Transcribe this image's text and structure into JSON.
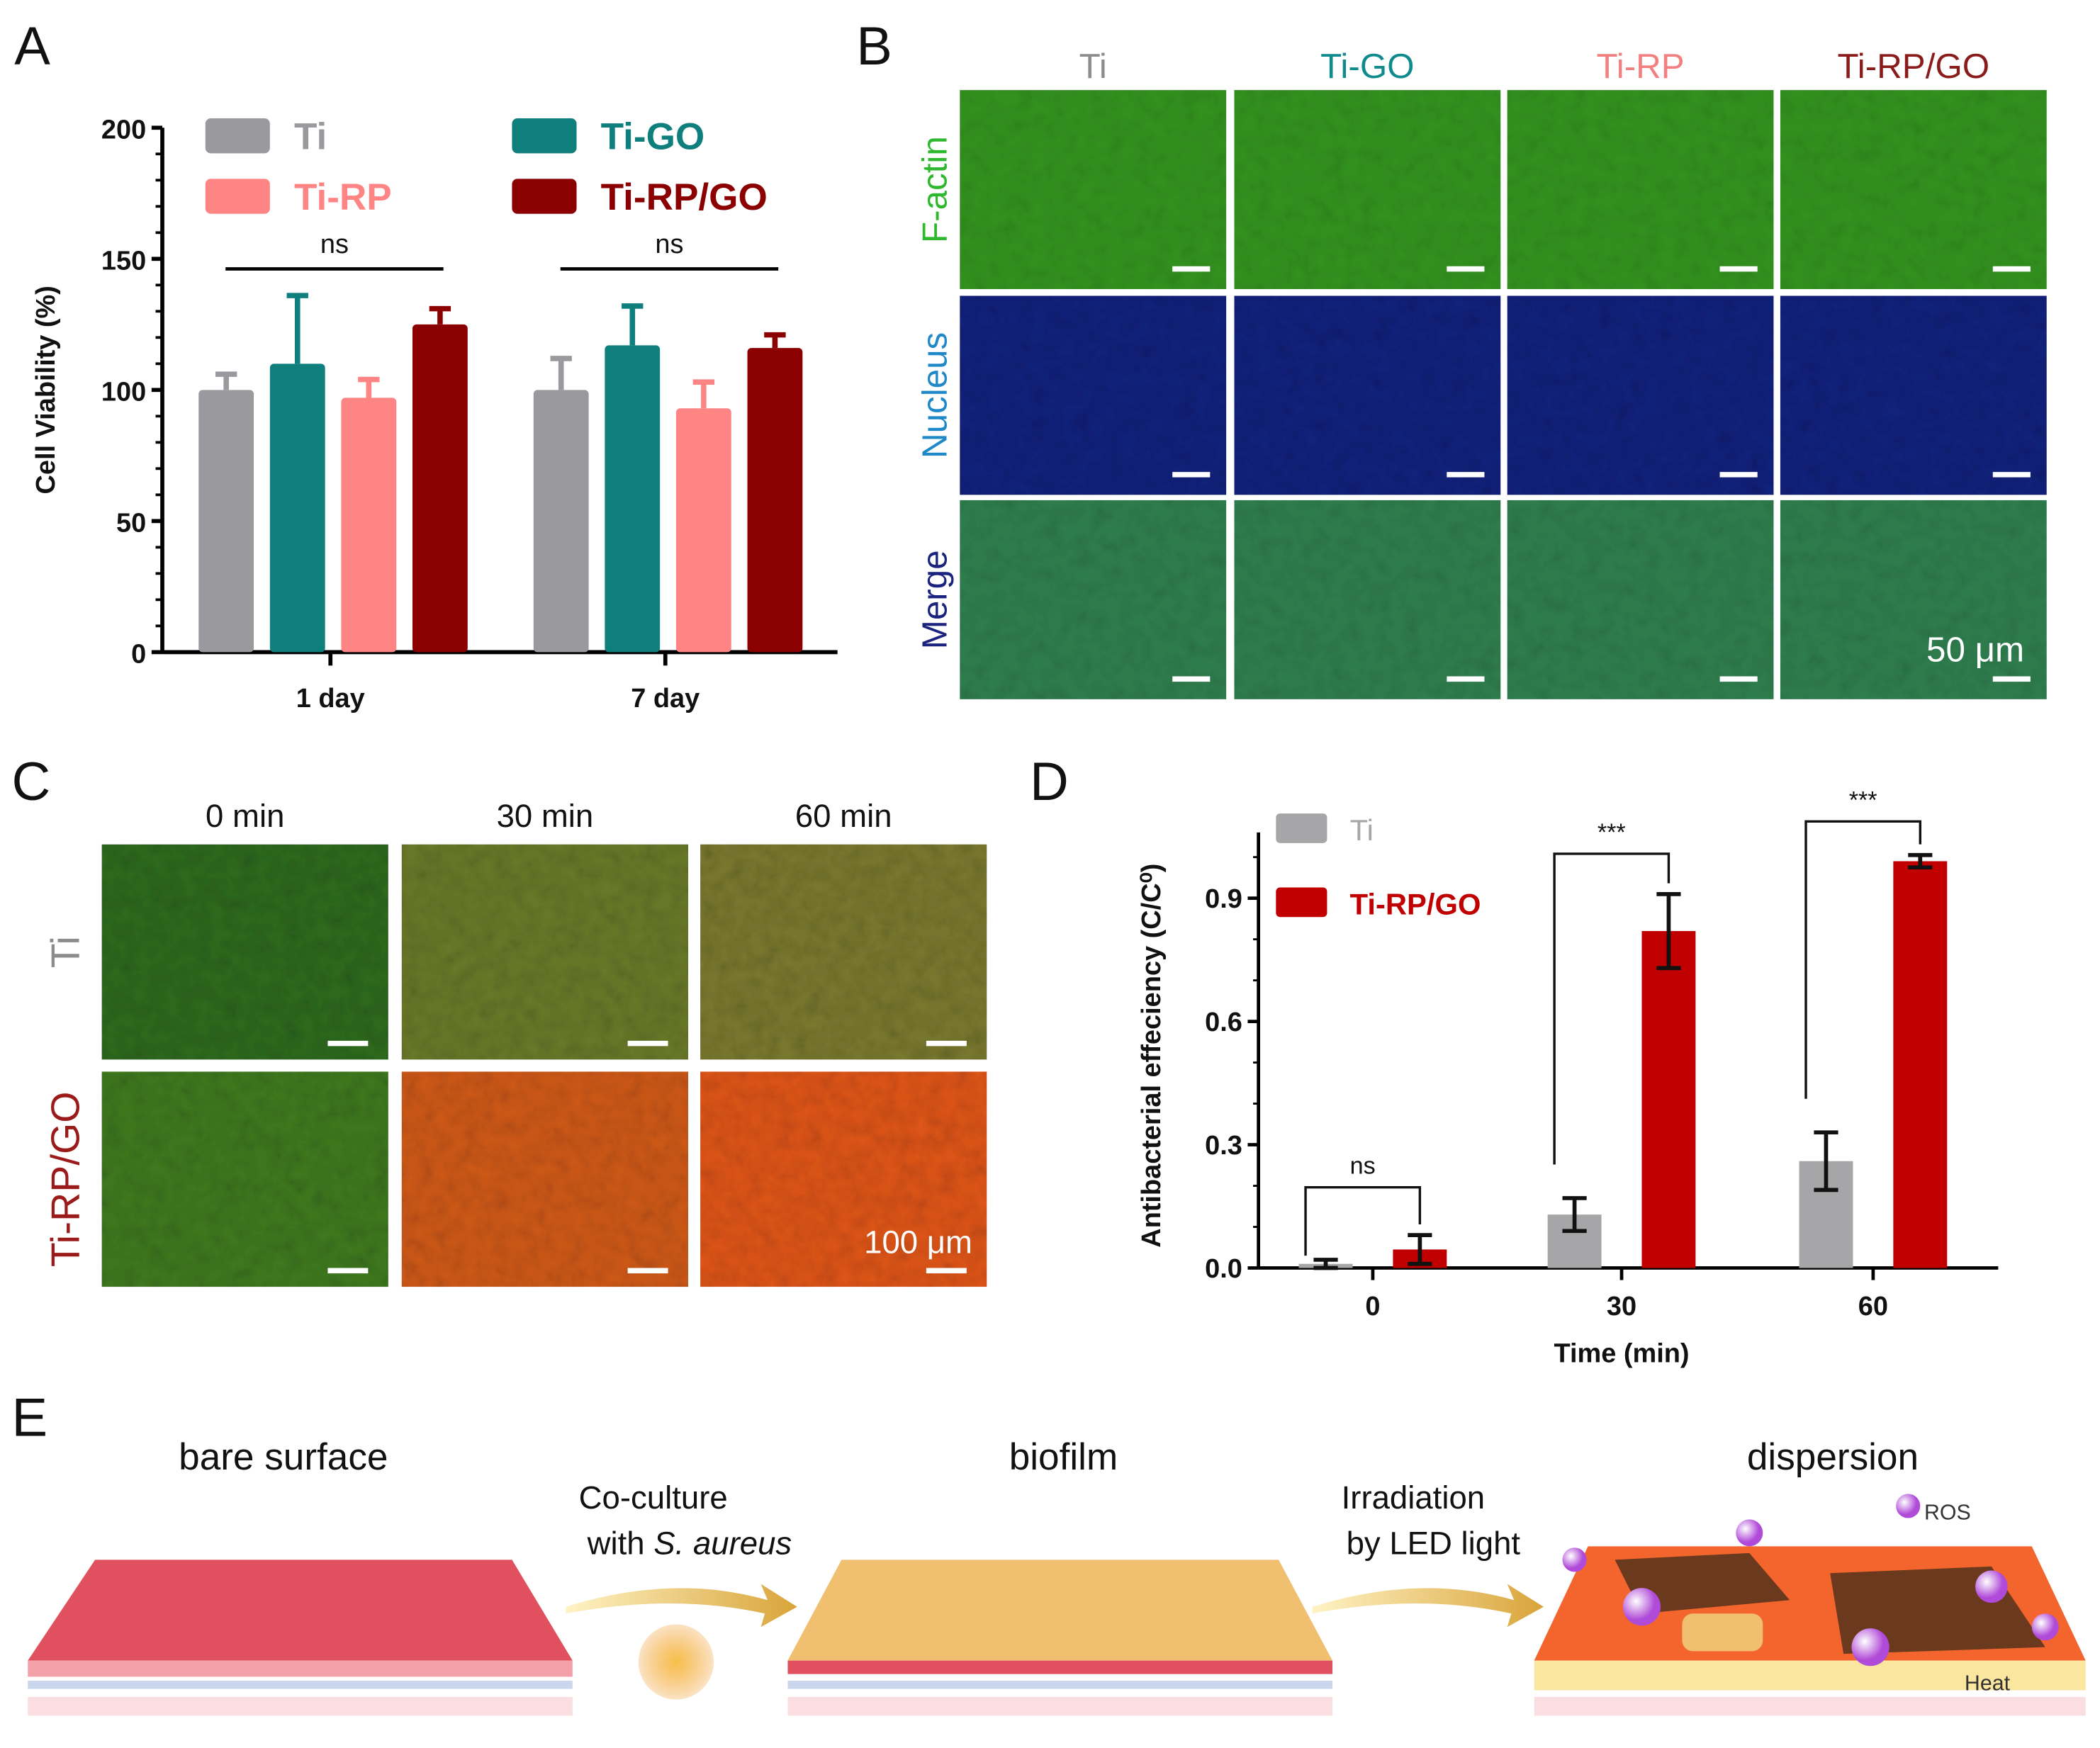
{
  "panel_labels": {
    "a": "A",
    "b": "B",
    "c": "C",
    "d": "D",
    "e": "E"
  },
  "panel_b": {
    "columns": [
      "Ti",
      "Ti-GO",
      "Ti-RP",
      "Ti-RP/GO"
    ],
    "column_colors": [
      "#8c8c8c",
      "#0f8b8d",
      "#f28080",
      "#8b1a1a"
    ],
    "rows": [
      "F-actin",
      "Nucleus",
      "Merge"
    ],
    "row_colors": [
      "#2eb82e",
      "#1e88c8",
      "#1a237e"
    ],
    "scale_bar": "50 μm"
  },
  "panel_c": {
    "columns": [
      "0 min",
      "30 min",
      "60 min"
    ],
    "rows": [
      "Ti",
      "Ti-RP/GO"
    ],
    "row_colors": [
      "#8c8c8c",
      "#9b1b1b"
    ],
    "scale_bar": "100 μm"
  },
  "panel_e": {
    "stage1": "bare surface",
    "step1_line1": "Co-culture",
    "step1_line2_prefix": "with ",
    "step1_line2_italic": "S. aureus",
    "stage2": "biofilm",
    "step2_line1": "Irradiation",
    "step2_line2": "by LED light",
    "stage3": "dispersion",
    "ros_label": "ROS",
    "heat_label": "Heat"
  },
  "chart_data": [
    {
      "type": "bar",
      "panel": "A",
      "categories": [
        "1 day",
        "7 day"
      ],
      "ylabel": "Cell Viability (%)",
      "xlabel": "",
      "ylim": [
        0,
        200
      ],
      "yticks": [
        "0",
        "50",
        "100",
        "150",
        "200"
      ],
      "legend_placement": "top",
      "series": [
        {
          "name": "Ti",
          "color": "#9a999e",
          "values": [
            100,
            100
          ],
          "errors": [
            6,
            12
          ]
        },
        {
          "name": "Ti-GO",
          "color": "#0f7f7d",
          "values": [
            110,
            117
          ],
          "errors": [
            26,
            15
          ]
        },
        {
          "name": "Ti-RP",
          "color": "#ff8585",
          "values": [
            97,
            93
          ],
          "errors": [
            7,
            10
          ]
        },
        {
          "name": "Ti-RP/GO",
          "color": "#8b0000",
          "values": [
            125,
            116
          ],
          "errors": [
            6,
            5
          ]
        }
      ],
      "annotations": [
        "ns",
        "ns"
      ]
    },
    {
      "type": "bar",
      "panel": "D",
      "categories": [
        "0",
        "30",
        "60"
      ],
      "xlabel": "Time (min)",
      "ylabel": "Antibacterial effeciency (C/C⁰)",
      "ylim": [
        0,
        1.05
      ],
      "yticks": [
        "0.0",
        "0.3",
        "0.6",
        "0.9"
      ],
      "legend_placement": "top-left",
      "series": [
        {
          "name": "Ti",
          "color": "#a6a6a8",
          "values": [
            0.01,
            0.13,
            0.26
          ],
          "errors": [
            0.01,
            0.04,
            0.07
          ]
        },
        {
          "name": "Ti-RP/GO",
          "color": "#c00000",
          "values": [
            0.045,
            0.82,
            0.99
          ],
          "errors": [
            0.035,
            0.09,
            0.015
          ]
        }
      ],
      "annotations": [
        "ns",
        "***",
        "***"
      ]
    }
  ]
}
